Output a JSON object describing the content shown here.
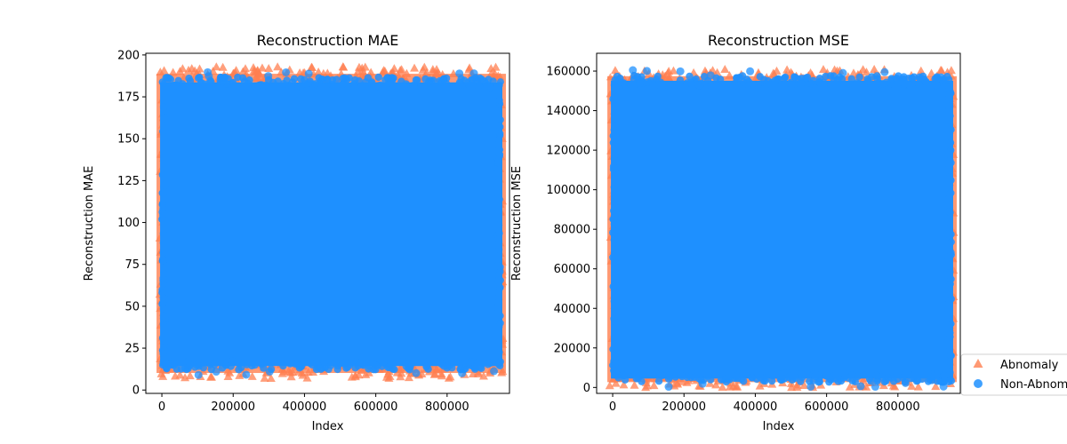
{
  "chart_data": [
    {
      "type": "scatter",
      "title": "Reconstruction MAE",
      "xlabel": "Index",
      "ylabel": "Reconstruction MAE",
      "xlim": [
        -45000,
        975000
      ],
      "ylim": [
        -2,
        201
      ],
      "xticks": [
        0,
        200000,
        400000,
        600000,
        800000
      ],
      "xtick_labels": [
        "0",
        "200000",
        "400000",
        "600000",
        "800000"
      ],
      "yticks": [
        0,
        25,
        50,
        75,
        100,
        125,
        150,
        175,
        200
      ],
      "ytick_labels": [
        "0",
        "25",
        "50",
        "75",
        "100",
        "125",
        "150",
        "175",
        "200"
      ],
      "x_range": [
        0,
        950000
      ],
      "series": [
        {
          "name": "Abnomaly",
          "marker": "triangle",
          "color": "#ff7f50",
          "y_range": [
            7,
            193
          ]
        },
        {
          "name": "Non-Abnomaly",
          "marker": "circle",
          "color": "#1e90ff",
          "y_range": [
            9,
            190
          ]
        }
      ],
      "grid": false
    },
    {
      "type": "scatter",
      "title": "Reconstruction MSE",
      "xlabel": "Index",
      "ylabel": "Reconstruction MSE",
      "xlim": [
        -45000,
        975000
      ],
      "ylim": [
        -3000,
        169000
      ],
      "xticks": [
        0,
        200000,
        400000,
        600000,
        800000
      ],
      "xtick_labels": [
        "0",
        "200000",
        "400000",
        "600000",
        "800000"
      ],
      "yticks": [
        0,
        20000,
        40000,
        60000,
        80000,
        100000,
        120000,
        140000,
        160000
      ],
      "ytick_labels": [
        "0",
        "20000",
        "40000",
        "60000",
        "80000",
        "100000",
        "120000",
        "140000",
        "160000"
      ],
      "x_range": [
        0,
        950000
      ],
      "series": [
        {
          "name": "Abnomaly",
          "marker": "triangle",
          "color": "#ff7f50",
          "y_range": [
            0,
            161000
          ]
        },
        {
          "name": "Non-Abnomaly",
          "marker": "circle",
          "color": "#1e90ff",
          "y_range": [
            0,
            160500
          ]
        }
      ],
      "grid": false
    }
  ],
  "legend": {
    "placement": "lower-right-outside",
    "entries": [
      {
        "label": "Abnomaly",
        "marker": "triangle",
        "color": "#ff7f50"
      },
      {
        "label": "Non-Abnomaly",
        "marker": "circle",
        "color": "#1e90ff"
      }
    ]
  }
}
